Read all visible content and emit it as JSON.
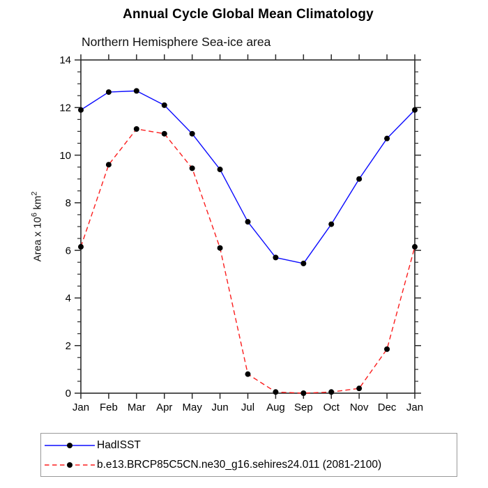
{
  "title": "Annual Cycle Global Mean Climatology",
  "subtitle": "Northern Hemisphere Sea-ice area",
  "ylabel": {
    "part1": "Area x 10",
    "sup1": "6",
    "part2": " km",
    "sup2": "2"
  },
  "colors": {
    "axis": "#2a2a2a",
    "marker": "#000000",
    "legend_border": "#999999"
  },
  "chart_data": {
    "type": "line",
    "categories": [
      "Jan",
      "Feb",
      "Mar",
      "Apr",
      "May",
      "Jun",
      "Jul",
      "Aug",
      "Sep",
      "Oct",
      "Nov",
      "Dec",
      "Jan"
    ],
    "series": [
      {
        "name": "HadISST",
        "color": "#0b0bff",
        "style": "solid",
        "marker": "circle",
        "marker_color": "#000000",
        "values": [
          11.9,
          12.65,
          12.7,
          12.1,
          10.9,
          9.4,
          7.2,
          5.7,
          5.45,
          7.1,
          9.0,
          10.7,
          11.9
        ]
      },
      {
        "name": "b.e13.BRCP85C5CN.ne30_g16.sehires24.011 (2081-2100)",
        "color": "#fb1d1d",
        "style": "dashed",
        "marker": "circle",
        "marker_color": "#000000",
        "values": [
          6.15,
          9.6,
          11.1,
          10.9,
          9.45,
          6.1,
          0.8,
          0.05,
          0.0,
          0.05,
          0.2,
          1.85,
          6.15
        ]
      }
    ],
    "ylim": [
      0,
      14
    ],
    "ytick_major": 2,
    "ytick_minor": 0.5,
    "grid": false,
    "legend_position": "bottom-left"
  }
}
